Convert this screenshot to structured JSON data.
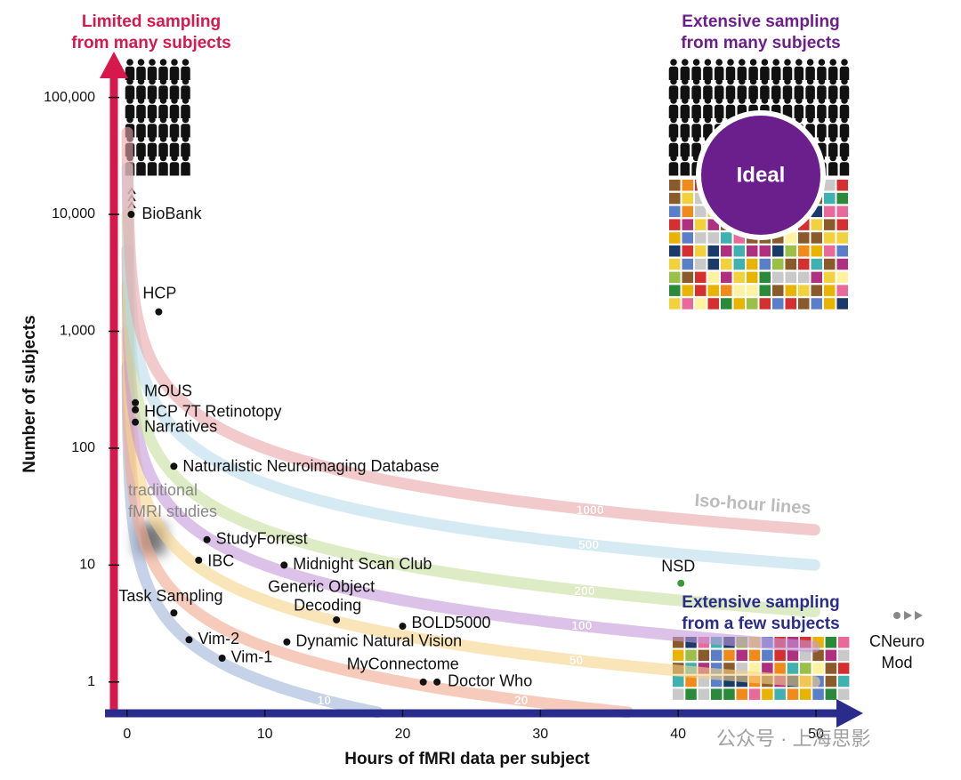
{
  "chart_data": {
    "type": "scatter",
    "x_label": "Hours of fMRI data per subject",
    "y_label": "Number of subjects",
    "xlim": [
      -1.6,
      53.1
    ],
    "ylim": [
      0.54,
      200000
    ],
    "log_y": true,
    "xticks": [
      0,
      10,
      20,
      30,
      40,
      50
    ],
    "yticks": [
      1,
      10,
      100,
      {
        "value": 1000,
        "label": "1,000"
      },
      {
        "value": 10000,
        "label": "10,000"
      },
      {
        "value": 100000,
        "label": "100,000"
      }
    ],
    "points": [
      {
        "label": "BioBank",
        "x": 0.3,
        "y": 10000
      },
      {
        "label": "HCP",
        "x": 2.3,
        "y": 1466
      },
      {
        "label": "MOUS",
        "x": 0.6,
        "y": 245
      },
      {
        "label": "HCP 7T Retinotopy",
        "x": 0.6,
        "y": 213
      },
      {
        "label": "Narratives",
        "x": 0.6,
        "y": 167
      },
      {
        "label": "Naturalistic Neuroimaging Database",
        "x": 3.4,
        "y": 70
      },
      {
        "label": "StudyForrest",
        "x": 5.8,
        "y": 16.5
      },
      {
        "label": "IBC",
        "x": 5.2,
        "y": 11
      },
      {
        "label": "Midnight Scan Club",
        "x": 11.4,
        "y": 10
      },
      {
        "label": "Task Sampling",
        "x": 3.4,
        "y": 3.9
      },
      {
        "label": [
          "Generic Object",
          "Decoding"
        ],
        "x": 15.2,
        "y": 3.4
      },
      {
        "label": "BOLD5000",
        "x": 20,
        "y": 3
      },
      {
        "label": "Vim-2",
        "x": 4.5,
        "y": 2.3
      },
      {
        "label": "Dynamic Natural Vision",
        "x": 11.6,
        "y": 2.2
      },
      {
        "label": "Vim-1",
        "x": 6.9,
        "y": 1.6
      },
      {
        "label": "MyConnectome",
        "x": 21.5,
        "y": 1
      },
      {
        "label": "Doctor Who",
        "x": 22.5,
        "y": 1
      },
      {
        "label": "NSD",
        "x": 40.2,
        "y": 7,
        "color": "#3a9a3a"
      }
    ],
    "iso_hour_lines": [
      {
        "value": 10,
        "color": "#9fb4d8"
      },
      {
        "value": 20,
        "color": "#f2a98e"
      },
      {
        "value": 50,
        "color": "#f7d38a"
      },
      {
        "value": 100,
        "color": "#c49ad8"
      },
      {
        "value": 200,
        "color": "#c6df9c"
      },
      {
        "value": 500,
        "color": "#b9dcea"
      },
      {
        "value": 1000,
        "color": "#eaa7aa"
      }
    ],
    "iso_label": "Iso-hour lines",
    "annotations": {
      "top_left": [
        "Limited sampling",
        "from many subjects"
      ],
      "top_right": [
        "Extensive sampling",
        "from many subjects"
      ],
      "bottom_right": [
        "Extensive sampling",
        "from a few subjects"
      ],
      "ideal": "Ideal",
      "traditional": [
        "traditional",
        "fMRI studies"
      ],
      "cneuromod": [
        "CNeuro",
        "Mod"
      ],
      "watermark": "公众号 · 上海思影"
    }
  }
}
